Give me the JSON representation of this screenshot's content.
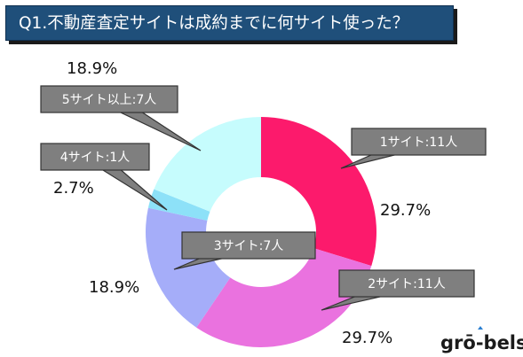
{
  "title": "Q1.不動産査定サイトは成約までに何サイト使った？",
  "logo_text": "grō-bels",
  "colors": {
    "1": "#fc1a6c",
    "2": "#ea72df",
    "3": "#a5adf9",
    "4": "#8de1f8",
    "5plus": "#c6fcfd",
    "callout_fill": "#7f7f7f",
    "callout_border": "#333333"
  },
  "chart_data": {
    "type": "pie",
    "donut": true,
    "title": "Q1.不動産査定サイトは成約までに何サイト使った？",
    "legend": "callouts",
    "slices": [
      {
        "key": "1",
        "label": "1サイト:11人",
        "count": 11,
        "percent_label": "29.7%"
      },
      {
        "key": "2",
        "label": "2サイト:11人",
        "count": 11,
        "percent_label": "29.7%"
      },
      {
        "key": "3",
        "label": "3サイト:7人",
        "count": 7,
        "percent_label": "18.9%"
      },
      {
        "key": "4",
        "label": "4サイト:1人",
        "count": 1,
        "percent_label": "2.7%"
      },
      {
        "key": "5plus",
        "label": "5サイト以上:7人",
        "count": 7,
        "percent_label": "18.9%"
      }
    ]
  }
}
